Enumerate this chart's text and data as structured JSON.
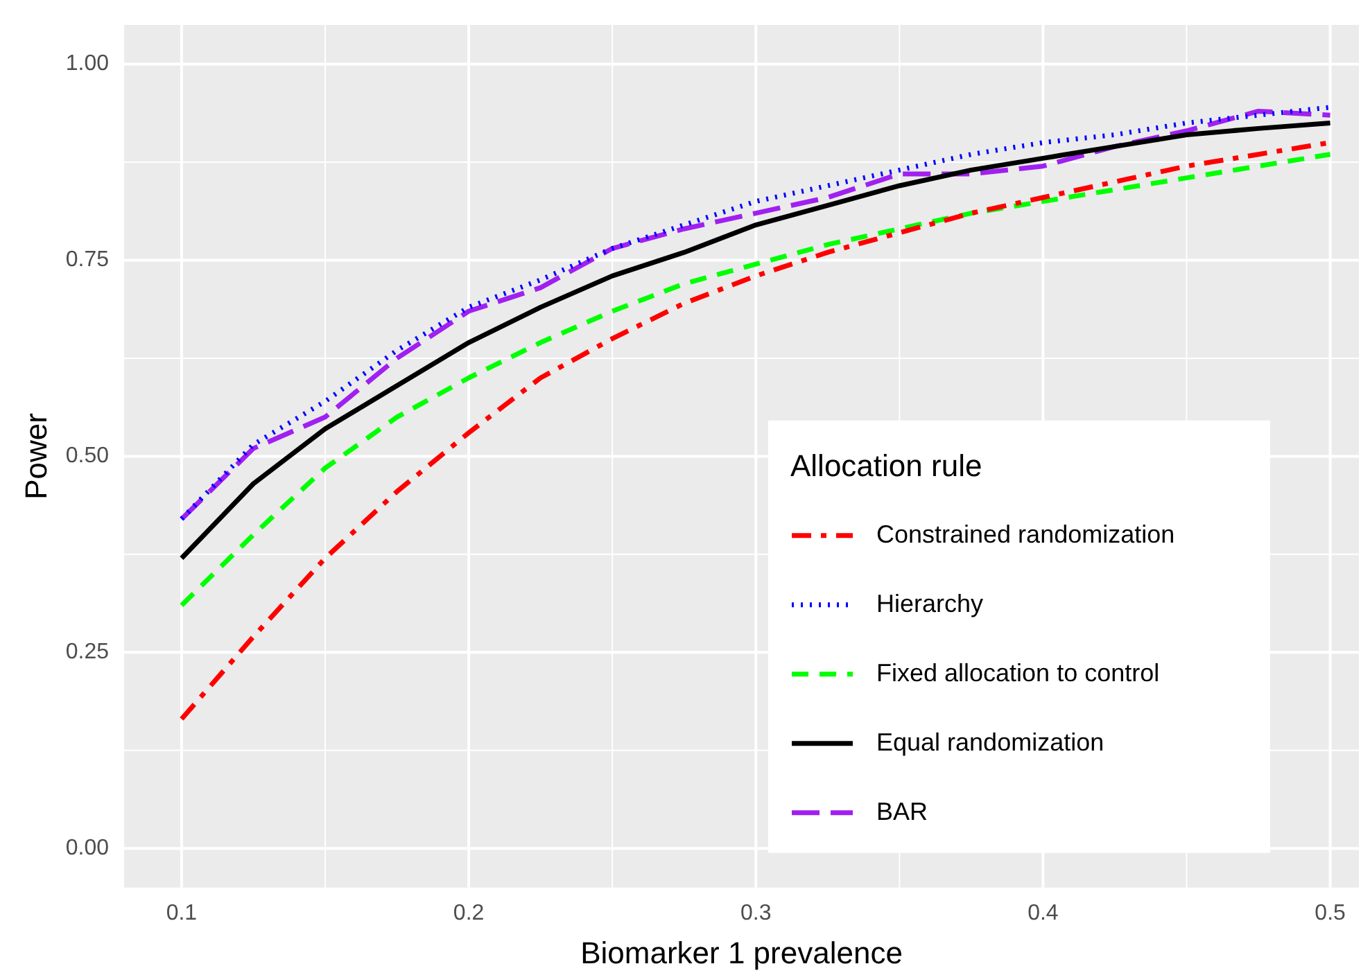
{
  "chart_data": {
    "type": "line",
    "xlabel": "Biomarker 1 prevalence",
    "ylabel": "Power",
    "legend_title": "Allocation rule",
    "legend": "bottom right",
    "grid": true,
    "marker": "none",
    "x": [
      0.1,
      0.125,
      0.15,
      0.175,
      0.2,
      0.225,
      0.25,
      0.275,
      0.3,
      0.325,
      0.35,
      0.375,
      0.4,
      0.425,
      0.45,
      0.475,
      0.5
    ],
    "xlim": [
      0.08,
      0.51
    ],
    "xticks": [
      0.1,
      0.2,
      0.3,
      0.4,
      0.5
    ],
    "ylim": [
      -0.05,
      1.05
    ],
    "yticks": [
      {
        "value": 0,
        "label": "0.00"
      },
      {
        "value": 0.25,
        "label": "0.25"
      },
      {
        "value": 0.5,
        "label": "0.50"
      },
      {
        "value": 0.75,
        "label": "0.75"
      },
      {
        "value": 1,
        "label": "1.00"
      }
    ],
    "series": [
      {
        "name": "Constrained randomization",
        "color": "#ff0000",
        "line_style": "dashdot",
        "values": [
          0.165,
          0.27,
          0.37,
          0.455,
          0.53,
          0.6,
          0.65,
          0.695,
          0.73,
          0.76,
          0.785,
          0.81,
          0.83,
          0.85,
          0.87,
          0.885,
          0.9
        ]
      },
      {
        "name": "Hierarchy",
        "color": "#0000ff",
        "line_style": "dotted",
        "values": [
          0.42,
          0.515,
          0.57,
          0.635,
          0.69,
          0.725,
          0.765,
          0.795,
          0.825,
          0.845,
          0.865,
          0.885,
          0.9,
          0.91,
          0.925,
          0.935,
          0.945
        ]
      },
      {
        "name": "Fixed allocation to control",
        "color": "#00ff00",
        "line_style": "dashed",
        "values": [
          0.31,
          0.4,
          0.485,
          0.55,
          0.6,
          0.645,
          0.685,
          0.72,
          0.745,
          0.77,
          0.79,
          0.81,
          0.825,
          0.84,
          0.855,
          0.87,
          0.885
        ]
      },
      {
        "name": "Equal randomization",
        "color": "#000000",
        "line_style": "solid",
        "values": [
          0.37,
          0.465,
          0.535,
          0.59,
          0.645,
          0.69,
          0.73,
          0.76,
          0.795,
          0.82,
          0.845,
          0.865,
          0.88,
          0.895,
          0.91,
          0.918,
          0.925
        ]
      },
      {
        "name": "BAR",
        "color": "#a020f0",
        "line_style": "longdash",
        "values": [
          0.42,
          0.51,
          0.55,
          0.625,
          0.685,
          0.715,
          0.765,
          0.79,
          0.81,
          0.83,
          0.86,
          0.86,
          0.87,
          0.895,
          0.915,
          0.94,
          0.935
        ]
      }
    ]
  }
}
